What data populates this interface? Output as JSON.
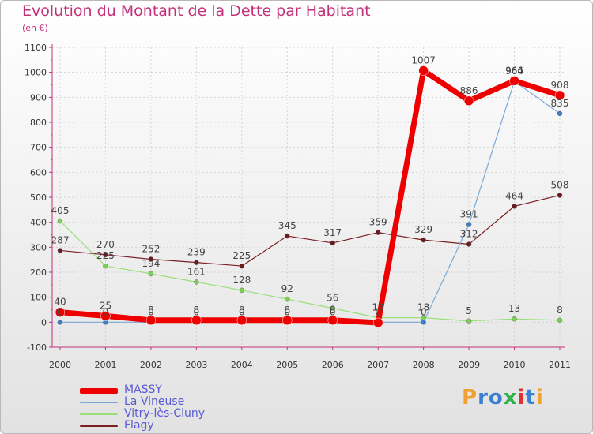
{
  "title": "Evolution du Montant de la Dette par Habitant",
  "subtitle": "(en €)",
  "logo": {
    "text": "Proxiti",
    "colors": [
      "#f0a030",
      "#3a7fd0",
      "#3a7fd0",
      "#2db34a",
      "#e03030",
      "#3a7fd0",
      "#f0a030"
    ]
  },
  "chart_data": {
    "type": "line",
    "categories": [
      "2000",
      "2001",
      "2002",
      "2003",
      "2004",
      "2005",
      "2006",
      "2007",
      "2008",
      "2009",
      "2010",
      "2011"
    ],
    "ylim": [
      -100,
      1100
    ],
    "yticks": [
      "-100",
      "0",
      "100",
      "200",
      "300",
      "400",
      "500",
      "600",
      "700",
      "800",
      "900",
      "1000",
      "1100"
    ],
    "grid": true,
    "legend": "bottom-left",
    "series": [
      {
        "name": "Flagy",
        "color": "#7a1f24",
        "point_color": "#6b1a1e",
        "width": 1.2,
        "values": [
          287,
          270,
          252,
          239,
          225,
          345,
          317,
          359,
          329,
          312,
          464,
          508
        ],
        "labels": [
          "287",
          "270",
          "252",
          "239",
          "225",
          "345",
          "317",
          "359",
          "329",
          "312",
          "464",
          "508"
        ]
      },
      {
        "name": "Vitry-lès-Cluny",
        "color": "#99e07a",
        "point_color": "#7ccf55",
        "width": 1.2,
        "values": [
          405,
          225,
          194,
          161,
          128,
          92,
          56,
          18,
          18,
          5,
          13,
          8
        ],
        "labels": [
          "405",
          "225",
          "194",
          "161",
          "128",
          "92",
          "56",
          "18",
          "18",
          "5",
          "13",
          "8"
        ]
      },
      {
        "name": "La Vineuse",
        "color": "#7aa8d6",
        "point_color": "#3d7fc4",
        "width": 1.2,
        "values": [
          0,
          0,
          0,
          0,
          0,
          0,
          0,
          0,
          0,
          391,
          964,
          835
        ],
        "labels": [
          "0",
          "0",
          "0",
          "0",
          "0",
          "0",
          "0",
          "0",
          "0",
          "391",
          "964",
          "835"
        ]
      },
      {
        "name": "MASSY",
        "color": "#ee0000",
        "point_color": "#ee0000",
        "width": 7,
        "values": [
          40,
          25,
          8,
          8,
          8,
          8,
          8,
          -2,
          1007,
          886,
          966,
          908
        ],
        "labels": [
          "40",
          "25",
          "8",
          "8",
          "8",
          "8",
          "8",
          "",
          "1007",
          "886",
          "966",
          "908"
        ]
      }
    ],
    "legend_order": [
      "MASSY",
      "La Vineuse",
      "Vitry-lès-Cluny",
      "Flagy"
    ]
  }
}
